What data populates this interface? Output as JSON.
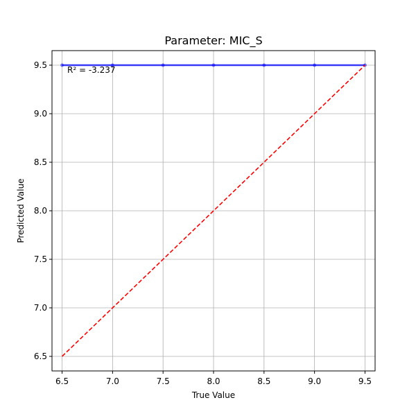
{
  "chart_data": {
    "type": "scatter",
    "title": "Parameter: MIC_S",
    "xlabel": "True Value",
    "ylabel": "Predicted Value",
    "xlim": [
      6.4,
      9.6
    ],
    "ylim": [
      6.35,
      9.65
    ],
    "xticks": [
      "6.5",
      "7.0",
      "7.5",
      "8.0",
      "8.5",
      "9.0",
      "9.5"
    ],
    "yticks": [
      "6.5",
      "7.0",
      "7.5",
      "8.0",
      "8.5",
      "9.0",
      "9.5"
    ],
    "grid": true,
    "annotation": "R² = -3.237",
    "series": [
      {
        "kind": "scatter",
        "color": "#0000ff",
        "x": [
          6.5,
          7.0,
          7.5,
          8.0,
          8.5,
          9.0,
          9.5
        ],
        "y": [
          9.5,
          9.5,
          9.5,
          9.5,
          9.5,
          9.5,
          9.5
        ]
      },
      {
        "kind": "line",
        "style": "dashed",
        "color": "#ff0000",
        "x": [
          6.5,
          9.5
        ],
        "y": [
          6.5,
          9.5
        ]
      }
    ]
  }
}
